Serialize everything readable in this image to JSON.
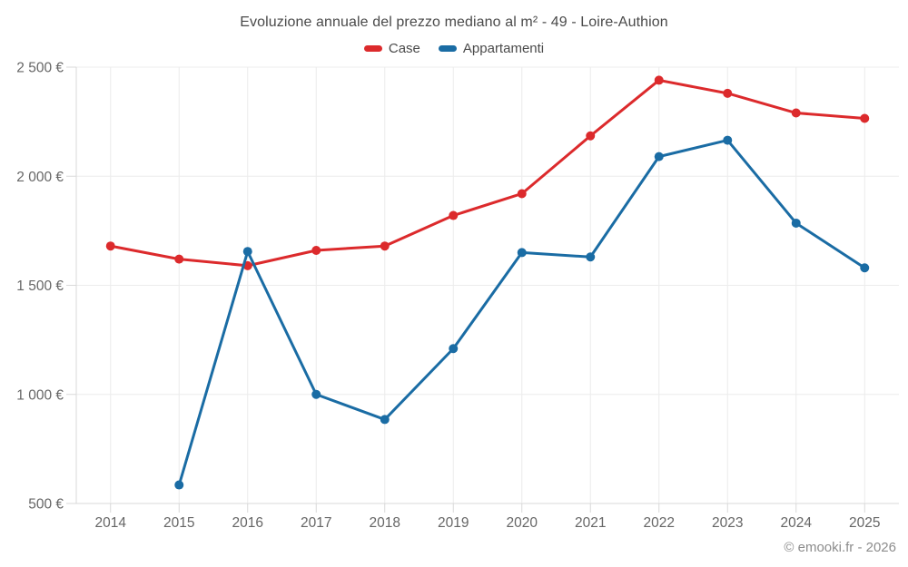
{
  "chart_data": {
    "type": "line",
    "title": "Evoluzione annuale del prezzo mediano al m² - 49 - Loire-Authion",
    "attribution": "© emooki.fr - 2026",
    "categories": [
      "2014",
      "2015",
      "2016",
      "2017",
      "2018",
      "2019",
      "2020",
      "2021",
      "2022",
      "2023",
      "2024",
      "2025"
    ],
    "series": [
      {
        "name": "Case",
        "color": "#dc2a2c",
        "values": [
          1680,
          1620,
          1590,
          1660,
          1680,
          1820,
          1920,
          2185,
          2440,
          2380,
          2290,
          2265
        ]
      },
      {
        "name": "Appartamenti",
        "color": "#1a6ca4",
        "values": [
          null,
          585,
          1655,
          1000,
          885,
          1210,
          1650,
          1630,
          2090,
          2165,
          1785,
          1580
        ]
      }
    ],
    "ylim": [
      500,
      2500
    ],
    "y_tick_values": [
      500,
      1000,
      1500,
      2000,
      2500
    ],
    "y_tick_labels": [
      "500 €",
      "1 000 €",
      "1 500 €",
      "2 000 €",
      "2 500 €"
    ],
    "grid": true,
    "legend_position": "top"
  }
}
